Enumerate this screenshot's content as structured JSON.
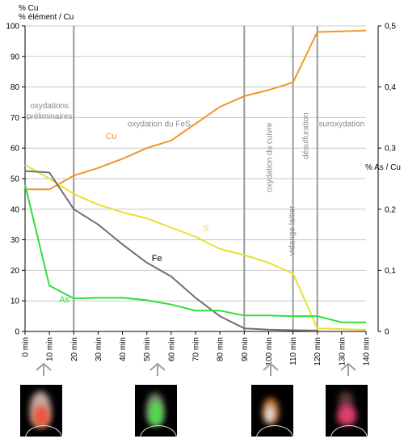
{
  "chart_data": {
    "type": "line",
    "y_left_label_line1": "% Cu",
    "y_left_label_line2": "% élément / Cu",
    "y_right_label": "% As / Cu",
    "x_ticks": [
      "0 min",
      "10 min",
      "20 min",
      "30 min",
      "40 min",
      "50 min",
      "60 min",
      "70 min",
      "80 min",
      "90 min",
      "100 min",
      "110 min",
      "120 min",
      "130 min",
      "140 min"
    ],
    "y_left_ticks": [
      "0",
      "10",
      "20",
      "30",
      "40",
      "50",
      "60",
      "70",
      "80",
      "90",
      "100"
    ],
    "y_right_ticks": [
      "0",
      "0,1",
      "0,2",
      "0,3",
      "0,4",
      "0,5"
    ],
    "xlim": [
      0,
      140
    ],
    "ylim": [
      0,
      100
    ],
    "y_right_lim": [
      0,
      0.5
    ],
    "grid": true,
    "phase_lines": [
      20,
      90,
      110,
      120
    ],
    "phases": [
      {
        "label_line1": "oxydations",
        "label_line2": "préliminaires",
        "x": 10,
        "y": 73,
        "rotated": false
      },
      {
        "label_line1": "oxydation du FeS",
        "label_line2": "",
        "x": 55,
        "y": 67,
        "rotated": false
      },
      {
        "label_line1": "oxydation du cuivre",
        "label_line2": "",
        "x": 100,
        "y": 57,
        "rotated": true
      },
      {
        "label_line1": "désulfuration",
        "label_line2": "",
        "x": 115,
        "y": 64,
        "rotated": true
      },
      {
        "label_line1": "suroxydation",
        "label_line2": "",
        "x": 130,
        "y": 67,
        "rotated": false
      }
    ],
    "annotation_vidange": "vidange laitier",
    "series": [
      {
        "name": "Cu",
        "color": "#f0962a",
        "axis": "left",
        "x": [
          0,
          7,
          10,
          20,
          30,
          40,
          50,
          60,
          70,
          80,
          90,
          100,
          110,
          120,
          130,
          140
        ],
        "y": [
          46.5,
          46.5,
          46.5,
          51,
          53.5,
          56.5,
          60,
          62.5,
          68,
          73.5,
          77,
          79,
          81.5,
          98,
          98.2,
          98.5
        ],
        "label_x": 33,
        "label_y": 63
      },
      {
        "name": "S",
        "color": "#e8e036",
        "axis": "left",
        "x": [
          0,
          10,
          20,
          30,
          40,
          50,
          60,
          70,
          80,
          90,
          100,
          110,
          120,
          130,
          140
        ],
        "y": [
          54.5,
          50,
          45,
          41.5,
          39,
          37,
          34,
          31,
          27,
          25,
          22.5,
          19,
          1,
          0.8,
          0.5
        ],
        "label_x": 73,
        "label_y": 33
      },
      {
        "name": "Fe",
        "color": "#707070",
        "axis": "left",
        "x": [
          0,
          10,
          20,
          30,
          40,
          50,
          60,
          70,
          80,
          90,
          100,
          110,
          120
        ],
        "y": [
          52.5,
          52,
          40,
          35,
          28.5,
          22.5,
          18,
          11,
          5,
          1,
          0.6,
          0.4,
          0.3
        ],
        "label_x": 52,
        "label_y": 23
      },
      {
        "name": "As",
        "color": "#2ede3a",
        "axis": "right",
        "x": [
          0,
          10,
          20,
          30,
          40,
          50,
          60,
          70,
          80,
          90,
          100,
          110,
          120,
          130,
          140
        ],
        "y": [
          0.24,
          0.075,
          0.054,
          0.055,
          0.055,
          0.051,
          0.044,
          0.034,
          0.034,
          0.026,
          0.026,
          0.025,
          0.025,
          0.015,
          0.015
        ],
        "label_x": 14,
        "label_y": 9.5
      }
    ]
  },
  "colors": {
    "axis": "#000000",
    "grid": "#c8c8c8",
    "phase_line": "#9a9a9a",
    "phase_text": "#8a8a8a",
    "arrow": "#a0a0a0"
  }
}
